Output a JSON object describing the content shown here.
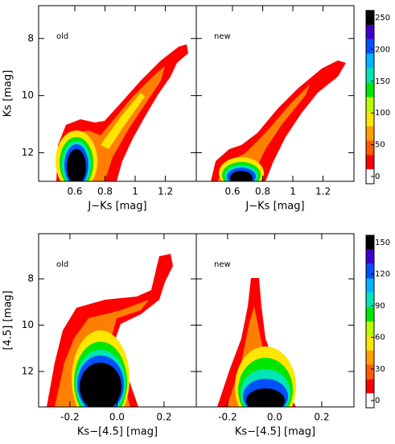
{
  "chart_data": [
    {
      "type": "density",
      "label": "old",
      "xlabel": "J−Ks [mag]",
      "ylabel": "Ks [mag]",
      "xlim": [
        0.36,
        1.405
      ],
      "ylim": [
        13.0,
        6.85
      ],
      "xticks": [
        0.6,
        0.8,
        1.0,
        1.2
      ],
      "yticks": [
        8,
        10,
        12
      ],
      "ytick_labels": true
    },
    {
      "type": "density",
      "label": "new",
      "xlabel": "J−Ks [mag]",
      "xlim": [
        0.36,
        1.405
      ],
      "ylim": [
        13.0,
        6.85
      ],
      "xticks": [
        0.6,
        0.8,
        1.0,
        1.2
      ],
      "yticks": [
        8,
        10,
        12
      ],
      "ytick_labels": false
    },
    {
      "type": "density",
      "label": "old",
      "xlabel": "Ks−[4.5] [mag]",
      "ylabel": "[4.5] [mag]",
      "xlim": [
        -0.333,
        0.337
      ],
      "ylim": [
        13.53,
        6.05
      ],
      "xticks": [
        -0.2,
        {
          "value": 0,
          "label": "0.0"
        },
        0.2
      ],
      "yticks": [
        8,
        10,
        12
      ],
      "ytick_labels": true
    },
    {
      "type": "density",
      "label": "new",
      "xlabel": "Ks−[4.5] [mag]",
      "xlim": [
        -0.333,
        0.337
      ],
      "ylim": [
        13.53,
        6.05
      ],
      "xticks": [
        -0.2,
        {
          "value": 0,
          "label": "0.0"
        },
        0.2
      ],
      "yticks": [
        8,
        10,
        12
      ],
      "ytick_labels": false
    },
    {
      "type": "colorbar",
      "ylim": [
        0,
        250
      ],
      "yticks": [
        0,
        50,
        100,
        150,
        200,
        250
      ],
      "colors": [
        "#ffffff",
        "#ff0000",
        "#ff5a00",
        "#ffa000",
        "#ffe600",
        "#b4ff00",
        "#00e600",
        "#00e6b4",
        "#00b4ff",
        "#0050ff",
        "#3c00c8",
        "#000000"
      ]
    },
    {
      "type": "colorbar",
      "ylim": [
        0,
        150
      ],
      "yticks": [
        0,
        30,
        60,
        90,
        120,
        150
      ],
      "colors": [
        "#ffffff",
        "#ff0000",
        "#ff5a00",
        "#ffa000",
        "#ffe600",
        "#b4ff00",
        "#00e600",
        "#00e6b4",
        "#00b4ff",
        "#0050ff",
        "#3c00c8",
        "#000000"
      ]
    }
  ]
}
